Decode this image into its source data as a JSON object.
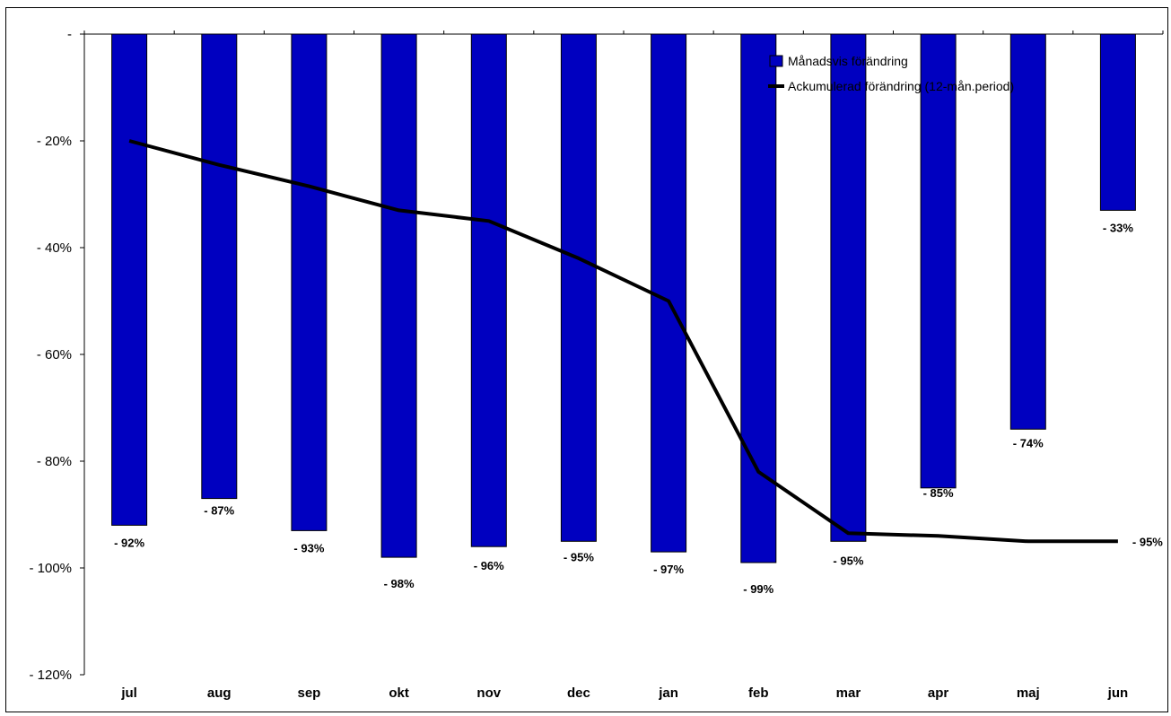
{
  "chart_data": {
    "type": "bar",
    "categories": [
      "jul",
      "aug",
      "sep",
      "okt",
      "nov",
      "dec",
      "jan",
      "feb",
      "mar",
      "apr",
      "maj",
      "jun"
    ],
    "ylim": [
      -120,
      0
    ],
    "yticks": [
      0,
      -20,
      -40,
      -60,
      -80,
      -100,
      -120
    ],
    "ytick_labels": [
      "-",
      "- 20%",
      "- 40%",
      "- 60%",
      "- 80%",
      "- 100%",
      "- 120%"
    ],
    "grid": false,
    "legend_position": "top-right",
    "series": [
      {
        "name": "Månadsvis förändring",
        "type": "bar",
        "color": "#0000c0",
        "values": [
          -92,
          -87,
          -93,
          -98,
          -96,
          -95,
          -97,
          -99,
          -95,
          -85,
          -74,
          -33
        ],
        "labels": [
          "- 92%",
          "- 87%",
          "- 93%",
          "- 98%",
          "- 96%",
          "- 95%",
          "- 97%",
          "- 99%",
          "- 95%",
          "- 85%",
          "- 74%",
          "- 33%"
        ]
      },
      {
        "name": "Ackumulerad förändring (12-mån.period)",
        "type": "line",
        "color": "#000000",
        "values": [
          -20,
          -24.5,
          -28.5,
          -33,
          -35,
          -42,
          -50,
          -82,
          -93.5,
          -94,
          -95,
          -95
        ],
        "labels": [
          "",
          "",
          "",
          "",
          "",
          "",
          "",
          "",
          "",
          "",
          "",
          "- 95%"
        ]
      }
    ]
  }
}
